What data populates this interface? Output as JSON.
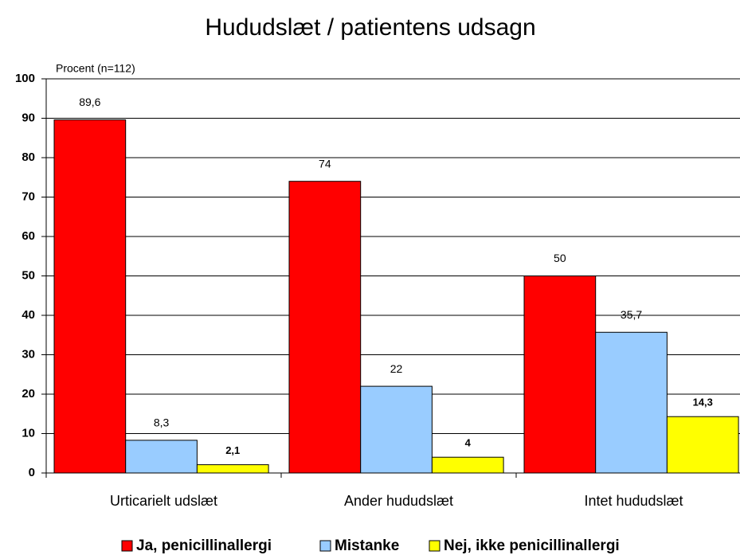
{
  "chart_data": {
    "type": "bar",
    "title": "Hududslæt / patientens udsagn",
    "y_label": "Procent (n=112)",
    "categories": [
      "Urticarielt udslæt",
      "Ander hududslæt",
      "Intet hududslæt"
    ],
    "series": [
      {
        "name": "Ja, penicillinallergi",
        "color": "#ff0000",
        "values": [
          89.6,
          74,
          50
        ],
        "value_labels": [
          "89,6",
          "74",
          "50"
        ]
      },
      {
        "name": "Mistanke",
        "color": "#99ccff",
        "values": [
          8.3,
          22,
          35.7
        ],
        "value_labels": [
          "8,3",
          "22",
          "35,7"
        ]
      },
      {
        "name": "Nej, ikke penicillinallergi",
        "color": "#ffff00",
        "values": [
          2.1,
          4,
          14.3
        ],
        "value_labels": [
          "2,1",
          "4",
          "14,3"
        ]
      }
    ],
    "ylim": [
      0,
      100
    ],
    "yticks": [
      0,
      10,
      20,
      30,
      40,
      50,
      60,
      70,
      80,
      90,
      100
    ],
    "grid": true,
    "legend": "bottom"
  }
}
